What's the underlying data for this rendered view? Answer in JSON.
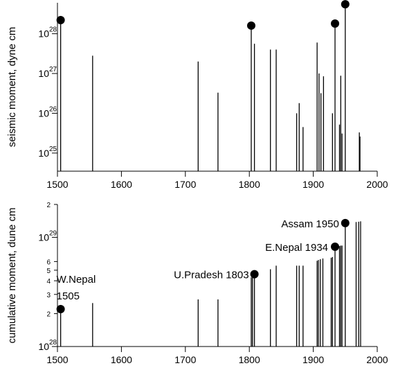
{
  "chart_data": [
    {
      "type": "bar",
      "ylabel": "seismic moment, dyne cm",
      "xlim": [
        1500,
        2000
      ],
      "xticks": [
        "1500",
        "1600",
        "1700",
        "1800",
        "1900",
        "2000"
      ],
      "yscale": "log",
      "ylim": [
        3.5e+24,
        6e+28
      ],
      "yticks": [
        {
          "value": 1e+25,
          "base": "10",
          "exp": "25"
        },
        {
          "value": 1e+26,
          "base": "10",
          "exp": "26"
        },
        {
          "value": 1e+27,
          "base": "10",
          "exp": "27"
        },
        {
          "value": 1e+28,
          "base": "10",
          "exp": "28"
        }
      ],
      "events": [
        {
          "year": 1505,
          "value": 2.2e+28,
          "marker": true
        },
        {
          "year": 1555,
          "value": 2.8e+27
        },
        {
          "year": 1720,
          "value": 2e+27
        },
        {
          "year": 1751,
          "value": 3.3e+26
        },
        {
          "year": 1803,
          "value": 1.6e+28,
          "marker": true
        },
        {
          "year": 1808,
          "value": 5.6e+27
        },
        {
          "year": 1833,
          "value": 4e+27
        },
        {
          "year": 1842,
          "value": 4e+27
        },
        {
          "year": 1874,
          "value": 1e+26
        },
        {
          "year": 1878,
          "value": 1.8e+26
        },
        {
          "year": 1884,
          "value": 4.5e+25
        },
        {
          "year": 1906,
          "value": 6e+27
        },
        {
          "year": 1909,
          "value": 1e+27
        },
        {
          "year": 1912,
          "value": 3.2e+26
        },
        {
          "year": 1916,
          "value": 8.5e+26
        },
        {
          "year": 1930,
          "value": 1e+26
        },
        {
          "year": 1934,
          "value": 1.8e+28,
          "marker": true
        },
        {
          "year": 1941,
          "value": 5.2e+25
        },
        {
          "year": 1943,
          "value": 8.8e+26
        },
        {
          "year": 1945,
          "value": 3.1e+25
        },
        {
          "year": 1950,
          "value": 5.5e+28,
          "marker": true
        },
        {
          "year": 1972,
          "value": 3.3e+25
        },
        {
          "year": 1973,
          "value": 2.6e+25
        }
      ],
      "grid": false
    },
    {
      "type": "bar",
      "ylabel": "cumulative moment, dune cm",
      "xlim": [
        1500,
        2000
      ],
      "xticks": [
        "1500",
        "1600",
        "1700",
        "1800",
        "1900",
        "2000"
      ],
      "yscale": "log",
      "ylim": [
        1e+28,
        2e+29
      ],
      "yticks": [
        {
          "value": 1e+28,
          "base": "10",
          "exp": "28",
          "major": true
        },
        {
          "value": 2e+28,
          "label": "2"
        },
        {
          "value": 3e+28,
          "label": "3"
        },
        {
          "value": 4e+28,
          "label": "4"
        },
        {
          "value": 5e+28,
          "label": "5"
        },
        {
          "value": 6e+28,
          "label": "6"
        },
        {
          "value": 1e+29,
          "base": "10",
          "exp": "29",
          "major": true
        },
        {
          "value": 2e+29,
          "label": "2"
        }
      ],
      "events": [
        {
          "year": 1505,
          "value": 2.2e+28,
          "marker": true
        },
        {
          "year": 1555,
          "value": 2.5e+28
        },
        {
          "year": 1720,
          "value": 2.7e+28
        },
        {
          "year": 1751,
          "value": 2.7e+28
        },
        {
          "year": 1803,
          "value": 4.3e+28
        },
        {
          "year": 1805,
          "value": 4.3e+28
        },
        {
          "year": 1808,
          "value": 4.6e+28,
          "marker": true
        },
        {
          "year": 1833,
          "value": 5.1e+28
        },
        {
          "year": 1842,
          "value": 5.5e+28
        },
        {
          "year": 1874,
          "value": 5.5e+28
        },
        {
          "year": 1878,
          "value": 5.5e+28
        },
        {
          "year": 1884,
          "value": 5.5e+28
        },
        {
          "year": 1906,
          "value": 6.1e+28
        },
        {
          "year": 1908,
          "value": 6.2e+28
        },
        {
          "year": 1911,
          "value": 6.3e+28
        },
        {
          "year": 1915,
          "value": 6.4e+28
        },
        {
          "year": 1928,
          "value": 6.5e+28
        },
        {
          "year": 1930,
          "value": 6.6e+28
        },
        {
          "year": 1934,
          "value": 8.2e+28,
          "marker": true
        },
        {
          "year": 1941,
          "value": 8.3e+28
        },
        {
          "year": 1943,
          "value": 8.4e+28
        },
        {
          "year": 1945,
          "value": 8.4e+28
        },
        {
          "year": 1950,
          "value": 1.35e+29,
          "marker": true
        },
        {
          "year": 1967,
          "value": 1.38e+29
        },
        {
          "year": 1971,
          "value": 1.39e+29
        },
        {
          "year": 1974,
          "value": 1.4e+29
        }
      ],
      "annotations": [
        {
          "text": "W.Nepal",
          "year": 1505
        },
        {
          "text": "1505",
          "year": 1505
        },
        {
          "text": "U.Pradesh 1803",
          "year": 1808
        },
        {
          "text": "E.Nepal 1934",
          "year": 1934
        },
        {
          "text": "Assam 1950",
          "year": 1950
        }
      ],
      "grid": false
    }
  ]
}
